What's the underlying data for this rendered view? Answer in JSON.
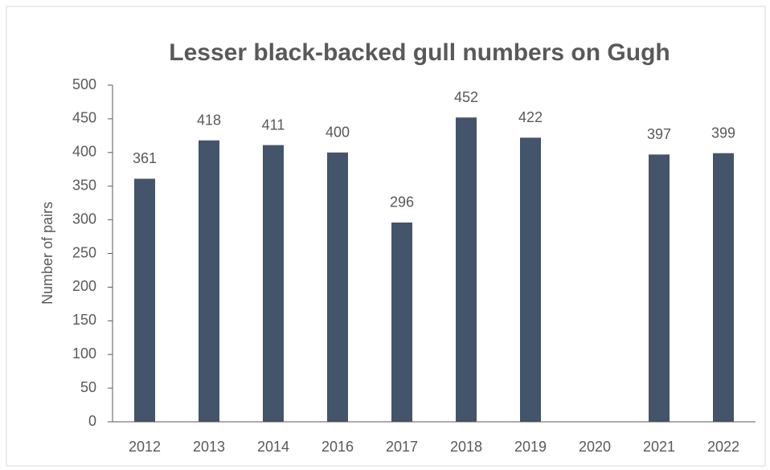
{
  "chart_data": {
    "type": "bar",
    "title": "Lesser black-backed gull numbers on Gugh",
    "y_label": "Number of pairs",
    "categories": [
      "2012",
      "2013",
      "2014",
      "2016",
      "2017",
      "2018",
      "2019",
      "2020",
      "2021",
      "2022"
    ],
    "values": [
      361,
      418,
      411,
      400,
      296,
      452,
      422,
      null,
      397,
      399
    ],
    "color": "#44546a",
    "ylim": [
      0,
      500
    ],
    "yticks": [
      0,
      50,
      100,
      150,
      200,
      250,
      300,
      350,
      400,
      450,
      500
    ],
    "grid": false
  }
}
